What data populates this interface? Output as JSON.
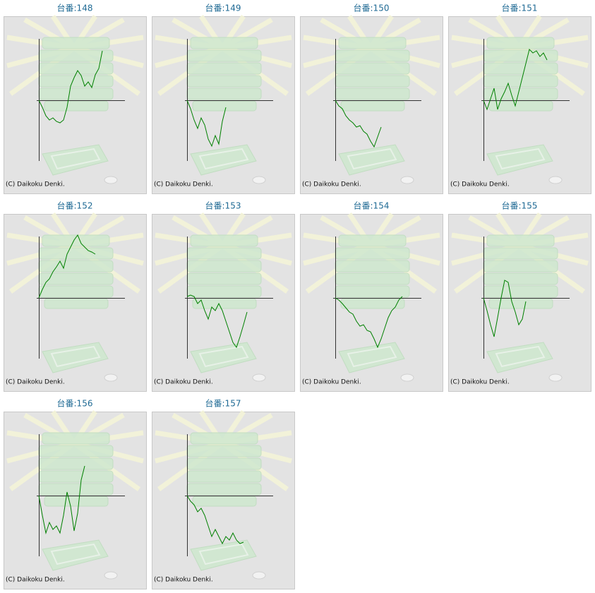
{
  "chart_data": [
    {
      "type": "line",
      "title": "台番:148",
      "credit": "(C) Daikoku Denki.",
      "color": "#008000",
      "xlim": [
        0,
        122
      ],
      "ylim": [
        -85,
        85
      ],
      "x": [
        0,
        5,
        10,
        15,
        20,
        25,
        30,
        35,
        40,
        45,
        50,
        55,
        60,
        65,
        70,
        75,
        80,
        85,
        90
      ],
      "values": [
        0,
        -10,
        -22,
        -28,
        -25,
        -30,
        -32,
        -28,
        -10,
        20,
        32,
        42,
        35,
        20,
        26,
        18,
        36,
        45,
        70
      ]
    },
    {
      "type": "line",
      "title": "台番:149",
      "credit": "(C) Daikoku Denki.",
      "color": "#008000",
      "xlim": [
        0,
        122
      ],
      "ylim": [
        -85,
        85
      ],
      "x": [
        0,
        5,
        10,
        15,
        20,
        25,
        30,
        35,
        40,
        45,
        50,
        55
      ],
      "values": [
        0,
        -12,
        -28,
        -40,
        -25,
        -35,
        -55,
        -65,
        -50,
        -62,
        -30,
        -10
      ]
    },
    {
      "type": "line",
      "title": "台番:150",
      "credit": "(C) Daikoku Denki.",
      "color": "#008000",
      "xlim": [
        0,
        122
      ],
      "ylim": [
        -85,
        85
      ],
      "x": [
        0,
        5,
        10,
        15,
        20,
        25,
        30,
        35,
        40,
        45,
        50,
        55,
        60,
        65
      ],
      "values": [
        0,
        -8,
        -12,
        -22,
        -28,
        -32,
        -38,
        -36,
        -44,
        -48,
        -58,
        -66,
        -52,
        -38
      ]
    },
    {
      "type": "line",
      "title": "台番:151",
      "credit": "(C) Daikoku Denki.",
      "color": "#008000",
      "xlim": [
        0,
        122
      ],
      "ylim": [
        -85,
        85
      ],
      "x": [
        0,
        5,
        10,
        15,
        20,
        25,
        30,
        35,
        40,
        45,
        50,
        55,
        60,
        65,
        70,
        75,
        80,
        85,
        90
      ],
      "values": [
        0,
        -13,
        2,
        17,
        -13,
        2,
        12,
        24,
        7,
        -8,
        12,
        32,
        52,
        72,
        67,
        70,
        62,
        67,
        57
      ]
    },
    {
      "type": "line",
      "title": "台番:152",
      "credit": "(C) Daikoku Denki.",
      "color": "#008000",
      "xlim": [
        0,
        122
      ],
      "ylim": [
        -85,
        85
      ],
      "x": [
        0,
        5,
        10,
        15,
        20,
        25,
        30,
        35,
        40,
        45,
        50,
        55,
        60,
        65,
        70,
        75,
        80
      ],
      "values": [
        0,
        12,
        22,
        27,
        37,
        44,
        52,
        42,
        62,
        72,
        82,
        89,
        77,
        72,
        67,
        65,
        62
      ]
    },
    {
      "type": "line",
      "title": "台番:153",
      "credit": "(C) Daikoku Denki.",
      "color": "#008000",
      "xlim": [
        0,
        122
      ],
      "ylim": [
        -85,
        85
      ],
      "x": [
        0,
        5,
        10,
        15,
        20,
        25,
        30,
        35,
        40,
        45,
        50,
        55,
        60,
        65,
        70,
        75,
        80,
        85
      ],
      "values": [
        2,
        4,
        2,
        -8,
        -3,
        -18,
        -30,
        -13,
        -18,
        -8,
        -18,
        -33,
        -48,
        -63,
        -70,
        -55,
        -38,
        -20
      ]
    },
    {
      "type": "line",
      "title": "台番:154",
      "credit": "(C) Daikoku Denki.",
      "color": "#008000",
      "xlim": [
        0,
        122
      ],
      "ylim": [
        -85,
        85
      ],
      "x": [
        0,
        5,
        10,
        15,
        20,
        25,
        30,
        35,
        40,
        45,
        50,
        55,
        60,
        65,
        70,
        75,
        80,
        85,
        90,
        95
      ],
      "values": [
        0,
        -3,
        -8,
        -14,
        -20,
        -23,
        -33,
        -40,
        -38,
        -46,
        -48,
        -58,
        -70,
        -58,
        -43,
        -28,
        -18,
        -13,
        -3,
        2
      ]
    },
    {
      "type": "line",
      "title": "台番:155",
      "credit": "(C) Daikoku Denki.",
      "color": "#008000",
      "xlim": [
        0,
        122
      ],
      "ylim": [
        -85,
        85
      ],
      "x": [
        0,
        5,
        10,
        15,
        20,
        25,
        30,
        35,
        40,
        45,
        50,
        55,
        60
      ],
      "values": [
        0,
        -18,
        -38,
        -55,
        -28,
        0,
        25,
        22,
        -5,
        -20,
        -38,
        -30,
        -5
      ]
    },
    {
      "type": "line",
      "title": "台番:156",
      "credit": "(C) Daikoku Denki.",
      "color": "#008000",
      "xlim": [
        0,
        122
      ],
      "ylim": [
        -85,
        85
      ],
      "x": [
        0,
        5,
        10,
        15,
        20,
        25,
        30,
        35,
        40,
        45,
        50,
        55,
        60,
        65
      ],
      "values": [
        0,
        -28,
        -53,
        -38,
        -48,
        -43,
        -53,
        -28,
        5,
        -15,
        -50,
        -25,
        22,
        42
      ]
    },
    {
      "type": "line",
      "title": "台番:157",
      "credit": "(C) Daikoku Denki.",
      "color": "#008000",
      "xlim": [
        0,
        122
      ],
      "ylim": [
        -85,
        85
      ],
      "x": [
        0,
        5,
        10,
        15,
        20,
        25,
        30,
        35,
        40,
        45,
        50,
        55,
        60,
        65,
        70,
        75,
        80
      ],
      "values": [
        0,
        -8,
        -13,
        -23,
        -18,
        -28,
        -43,
        -58,
        -48,
        -58,
        -68,
        -58,
        -63,
        -53,
        -63,
        -68,
        -66
      ]
    }
  ]
}
